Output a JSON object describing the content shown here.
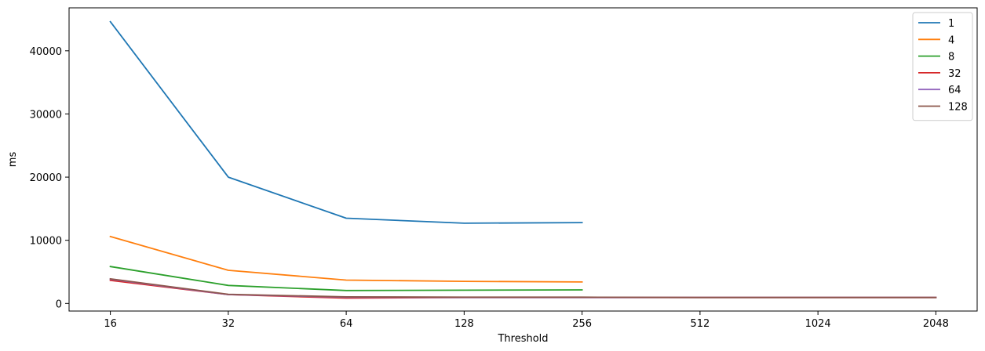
{
  "chart_data": {
    "type": "line",
    "title": "",
    "xlabel": "Threshold",
    "ylabel": "ms",
    "categories": [
      "16",
      "32",
      "64",
      "128",
      "256",
      "512",
      "1024",
      "2048"
    ],
    "ylim": [
      -1200,
      46800
    ],
    "yticks": [
      0,
      10000,
      20000,
      30000,
      40000
    ],
    "yticklabels": [
      "0",
      "10000",
      "20000",
      "30000",
      "40000"
    ],
    "grid": false,
    "legend_position": "top-right",
    "series": [
      {
        "name": "1",
        "color": "#1f77b4",
        "values": [
          44600,
          20000,
          13500,
          12700,
          12800,
          null,
          null,
          null
        ]
      },
      {
        "name": "4",
        "color": "#ff7f0e",
        "values": [
          10600,
          5250,
          3700,
          3500,
          3400,
          null,
          null,
          null
        ]
      },
      {
        "name": "8",
        "color": "#2ca02c",
        "values": [
          5850,
          2850,
          2050,
          2100,
          2150,
          null,
          null,
          null
        ]
      },
      {
        "name": "32",
        "color": "#d62728",
        "values": [
          3650,
          1400,
          850,
          950,
          950,
          950,
          950,
          950
        ]
      },
      {
        "name": "64",
        "color": "#9467bd",
        "values": [
          3850,
          1400,
          1000,
          950,
          950,
          950,
          950,
          950
        ]
      },
      {
        "name": "128",
        "color": "#8c564b",
        "values": [
          3900,
          1450,
          1050,
          1000,
          1000,
          950,
          950,
          950
        ]
      }
    ]
  }
}
